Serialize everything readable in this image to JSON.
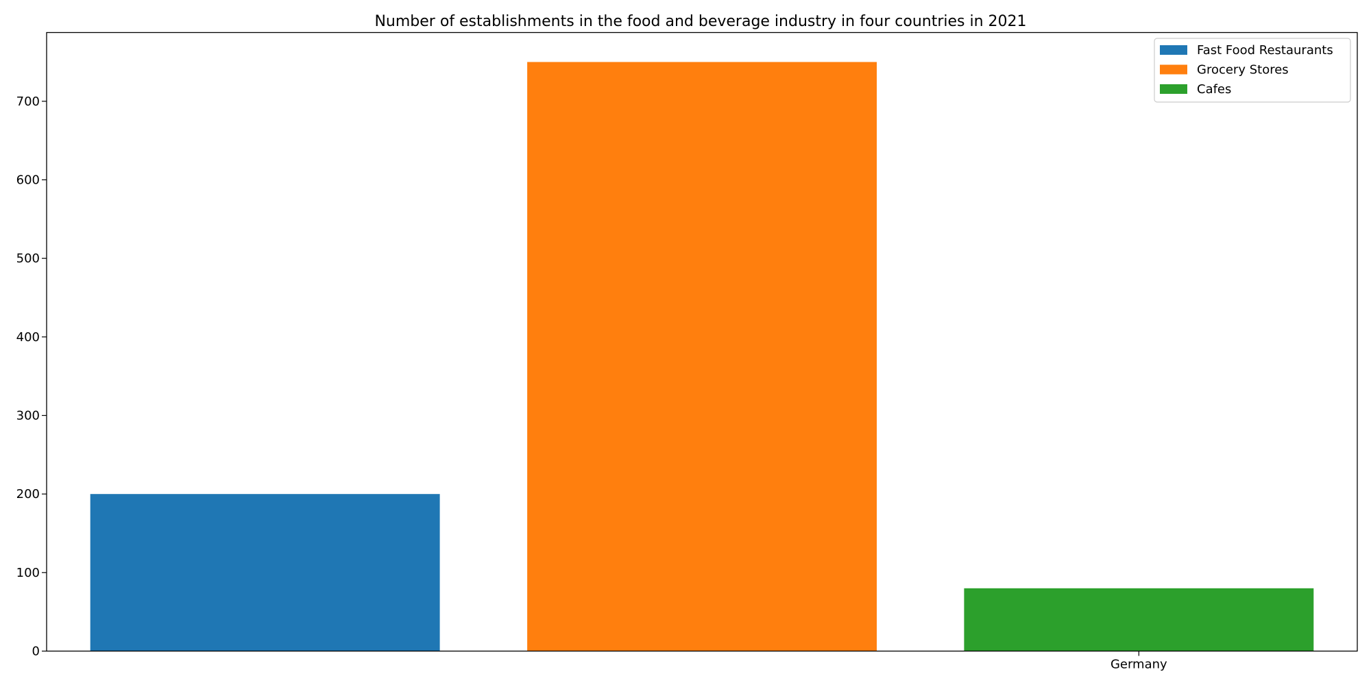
{
  "chart_data": {
    "type": "bar",
    "title": "Number of establishments in the food and beverage industry in four countries in 2021",
    "xlabel": "",
    "ylabel": "",
    "x_tick_labels": [
      "",
      "",
      "Germany"
    ],
    "ylim": [
      0,
      787.5
    ],
    "yticks": [
      0,
      100,
      200,
      300,
      400,
      500,
      600,
      700
    ],
    "grid": false,
    "legend_position": "top-right",
    "series": [
      {
        "name": "Fast Food Restaurants",
        "color": "#1f77b4",
        "value": 200
      },
      {
        "name": "Grocery Stores",
        "color": "#ff7f0e",
        "value": 750
      },
      {
        "name": "Cafes",
        "color": "#2ca02c",
        "value": 80
      }
    ]
  }
}
